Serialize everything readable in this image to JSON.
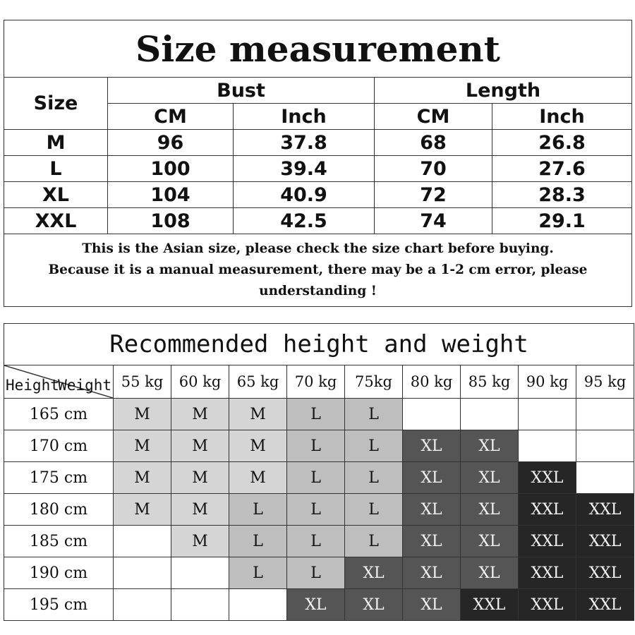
{
  "size_measurement": {
    "title": "Size measurement",
    "size_label": "Size",
    "groups": [
      "Bust",
      "Length"
    ],
    "units": [
      "CM",
      "Inch",
      "CM",
      "Inch"
    ],
    "rows": [
      [
        "M",
        "96",
        "37.8",
        "68",
        "26.8"
      ],
      [
        "L",
        "100",
        "39.4",
        "70",
        "27.6"
      ],
      [
        "XL",
        "104",
        "40.9",
        "72",
        "28.3"
      ],
      [
        "XXL",
        "108",
        "42.5",
        "74",
        "29.1"
      ]
    ],
    "note_lines": [
      "This is the Asian size, please check the size chart before buying.",
      "Because it is a manual measurement, there may be a 1-2 cm error, please",
      "understanding !"
    ]
  },
  "recommended": {
    "title": "Recommended height and weight",
    "corner_height": "Height",
    "corner_weight": "Weight",
    "weights": [
      "55 kg",
      "60 kg",
      "65 kg",
      "70 kg",
      "75kg",
      "80 kg",
      "85 kg",
      "90 kg",
      "95 kg"
    ],
    "heights": [
      "165 cm",
      "170 cm",
      "175 cm",
      "180 cm",
      "185 cm",
      "190 cm",
      "195 cm"
    ],
    "grid": [
      [
        "M",
        "M",
        "M",
        "L",
        "L",
        "",
        "",
        "",
        ""
      ],
      [
        "M",
        "M",
        "M",
        "L",
        "L",
        "XL",
        "XL",
        "",
        ""
      ],
      [
        "M",
        "M",
        "M",
        "L",
        "L",
        "XL",
        "XL",
        "XXL",
        ""
      ],
      [
        "M",
        "M",
        "L",
        "L",
        "L",
        "XL",
        "XL",
        "XXL",
        "XXL"
      ],
      [
        "",
        "M",
        "L",
        "L",
        "L",
        "XL",
        "XL",
        "XXL",
        "XXL"
      ],
      [
        "",
        "",
        "L",
        "L",
        "XL",
        "XL",
        "XL",
        "XXL",
        "XXL"
      ],
      [
        "",
        "",
        "",
        "XL",
        "XL",
        "XL",
        "XXL",
        "XXL",
        "XXL"
      ]
    ],
    "size_colors": {
      "M": {
        "bg": "#d5d5d5",
        "fg": "#111111"
      },
      "L": {
        "bg": "#bebebe",
        "fg": "#111111"
      },
      "XL": {
        "bg": "#555555",
        "fg": "#f2f2f2"
      },
      "XXL": {
        "bg": "#262626",
        "fg": "#f2f2f2"
      },
      "empty": {
        "bg": "#ffffff",
        "fg": "#111111"
      }
    }
  }
}
